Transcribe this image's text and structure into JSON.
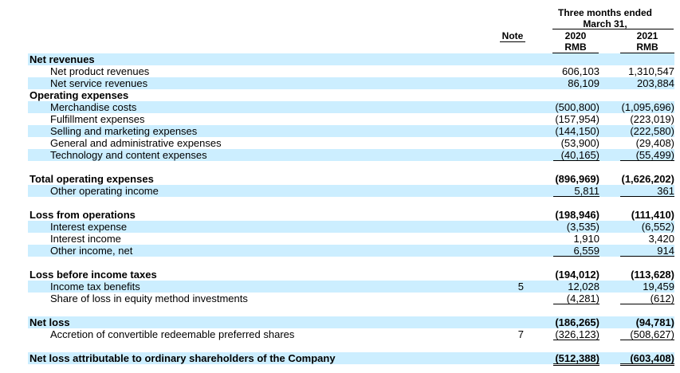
{
  "header": {
    "period": "Three months ended\nMarch 31,",
    "note_label": "Note",
    "col_2020_year": "2020",
    "col_2021_year": "2021",
    "currency_2020": "RMB",
    "currency_2021": "RMB"
  },
  "rows": [
    {
      "label": "Net revenues",
      "note": "",
      "v2020": "",
      "v2021": ""
    },
    {
      "label": "Net product revenues",
      "note": "",
      "v2020": "606,103",
      "v2021": "1,310,547"
    },
    {
      "label": "Net service revenues",
      "note": "",
      "v2020": "86,109",
      "v2021": "203,884"
    },
    {
      "label": "Operating expenses",
      "note": "",
      "v2020": "",
      "v2021": ""
    },
    {
      "label": "Merchandise costs",
      "note": "",
      "v2020": "(500,800)",
      "v2021": "(1,095,696)"
    },
    {
      "label": "Fulfillment expenses",
      "note": "",
      "v2020": "(157,954)",
      "v2021": "(223,019)"
    },
    {
      "label": "Selling and marketing expenses",
      "note": "",
      "v2020": "(144,150)",
      "v2021": "(222,580)"
    },
    {
      "label": "General and administrative expenses",
      "note": "",
      "v2020": "(53,900)",
      "v2021": "(29,408)"
    },
    {
      "label": "Technology and content expenses",
      "note": "",
      "v2020": "(40,165)",
      "v2021": "(55,499)"
    },
    {
      "label": "Total operating expenses",
      "note": "",
      "v2020": "(896,969)",
      "v2021": "(1,626,202)"
    },
    {
      "label": "Other operating income",
      "note": "",
      "v2020": "5,811",
      "v2021": "361"
    },
    {
      "label": "Loss from operations",
      "note": "",
      "v2020": "(198,946)",
      "v2021": "(111,410)"
    },
    {
      "label": "Interest expense",
      "note": "",
      "v2020": "(3,535)",
      "v2021": "(6,552)"
    },
    {
      "label": "Interest income",
      "note": "",
      "v2020": "1,910",
      "v2021": "3,420"
    },
    {
      "label": "Other income, net",
      "note": "",
      "v2020": "6,559",
      "v2021": "914"
    },
    {
      "label": "Loss before income taxes",
      "note": "",
      "v2020": "(194,012)",
      "v2021": "(113,628)"
    },
    {
      "label": "Income tax benefits",
      "note": "5",
      "v2020": "12,028",
      "v2021": "19,459"
    },
    {
      "label": "Share of loss in equity method investments",
      "note": "",
      "v2020": "(4,281)",
      "v2021": "(612)"
    },
    {
      "label": "Net loss",
      "note": "",
      "v2020": "(186,265)",
      "v2021": "(94,781)"
    },
    {
      "label": "Accretion of convertible redeemable preferred shares",
      "note": "7",
      "v2020": "(326,123)",
      "v2021": "(508,627)"
    },
    {
      "label": "Net loss attributable to ordinary shareholders of the Company",
      "note": "",
      "v2020": "(512,388)",
      "v2021": "(603,408)"
    }
  ]
}
